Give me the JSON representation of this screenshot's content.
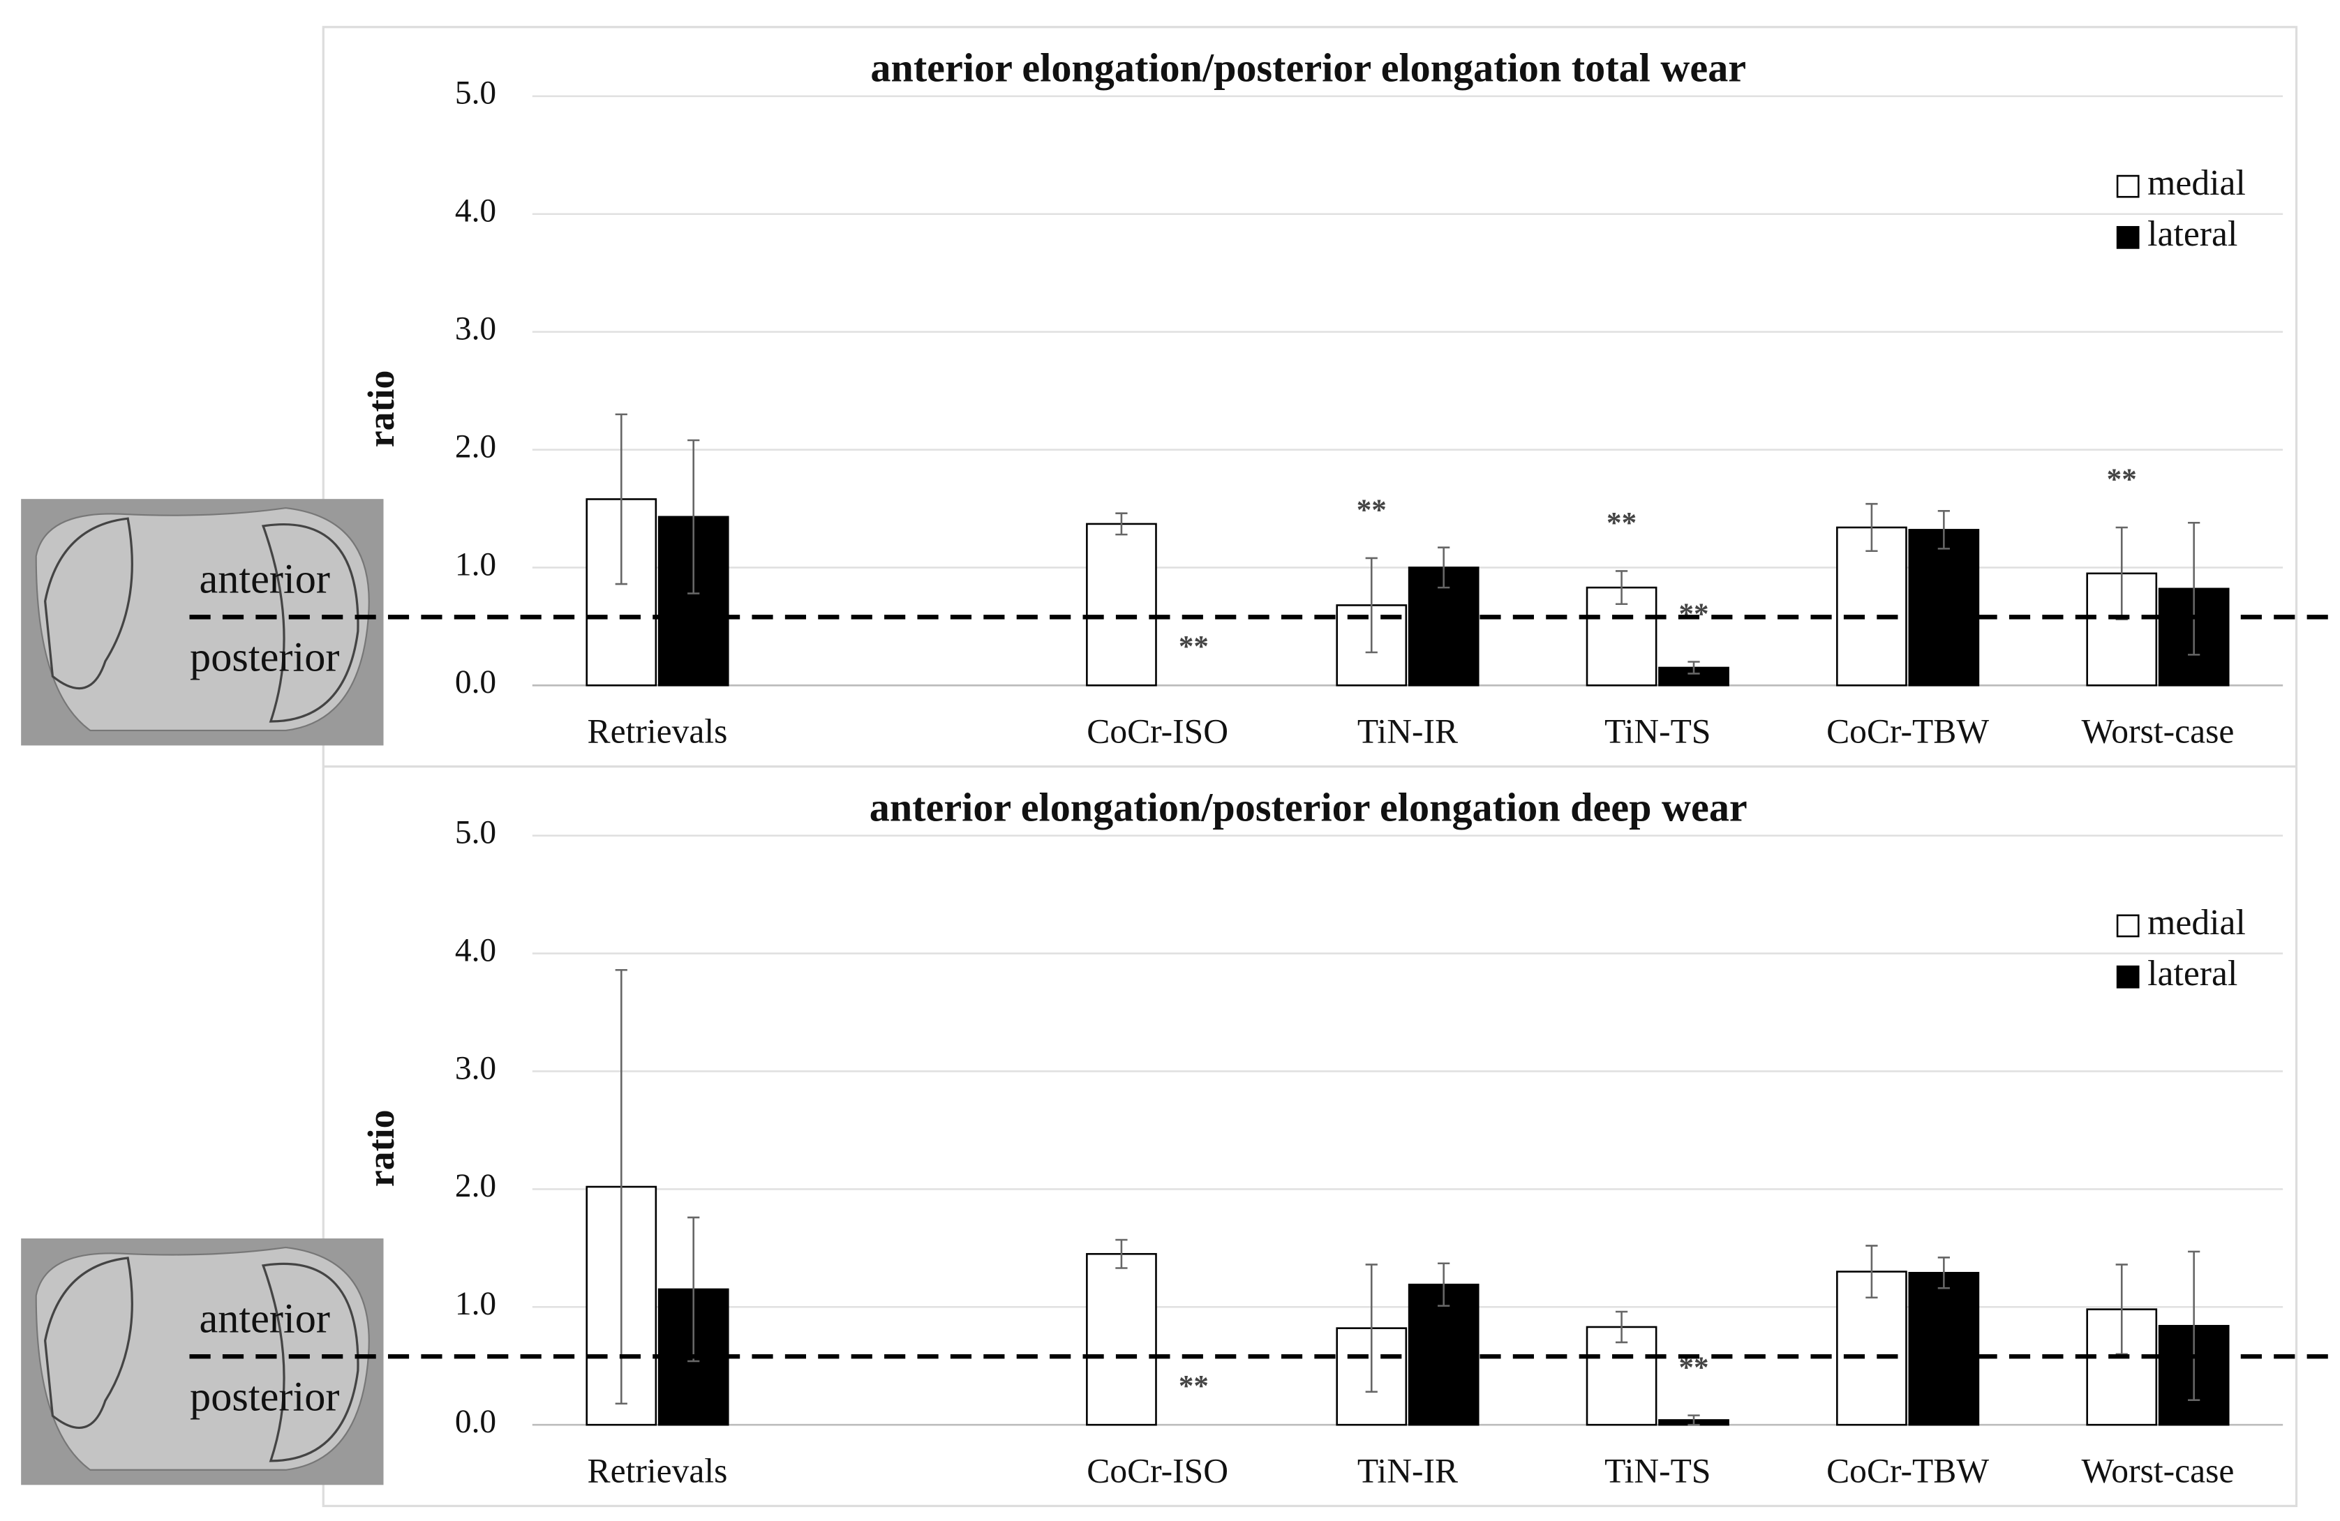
{
  "chart_data": [
    {
      "type": "bar",
      "title": "anterior elongation/posterior elongation total wear",
      "y_label": "ratio",
      "categories": [
        "Retrievals",
        null,
        "CoCr-ISO",
        "TiN-IR",
        "TiN-TS",
        "CoCr-TBW",
        "Worst-case"
      ],
      "series": [
        {
          "name": "medial",
          "color": "#ffffff",
          "values": [
            1.58,
            null,
            1.37,
            0.68,
            0.83,
            1.34,
            0.95
          ],
          "errors": [
            0.72,
            null,
            0.09,
            0.4,
            0.14,
            0.2,
            0.39
          ],
          "annotations": [
            null,
            null,
            null,
            "**",
            "**",
            null,
            "**"
          ]
        },
        {
          "name": "lateral",
          "color": "#000000",
          "values": [
            1.43,
            null,
            null,
            1.0,
            0.15,
            1.32,
            0.82
          ],
          "errors": [
            0.65,
            null,
            null,
            0.17,
            0.05,
            0.16,
            0.56
          ],
          "annotations": [
            null,
            null,
            "**",
            null,
            "**",
            null,
            null
          ]
        }
      ],
      "ylim": [
        0,
        5
      ],
      "yticks": [
        {
          "value": 0,
          "label": "0.0"
        },
        {
          "value": 1,
          "label": "1.0"
        },
        {
          "value": 2,
          "label": "2.0"
        },
        {
          "value": 3,
          "label": "3.0"
        },
        {
          "value": 4,
          "label": "4.0"
        },
        {
          "value": 5,
          "label": "5.0"
        }
      ],
      "grid": true,
      "legend": "upper right",
      "reference_line": 0.58,
      "inset_labels": [
        "anterior",
        "posterior"
      ]
    },
    {
      "type": "bar",
      "title": "anterior elongation/posterior elongation deep wear",
      "y_label": "ratio",
      "categories": [
        "Retrievals",
        null,
        "CoCr-ISO",
        "TiN-IR",
        "TiN-TS",
        "CoCr-TBW",
        "Worst-case"
      ],
      "series": [
        {
          "name": "medial",
          "color": "#ffffff",
          "values": [
            2.02,
            null,
            1.45,
            0.82,
            0.83,
            1.3,
            0.98
          ],
          "errors": [
            1.84,
            null,
            0.12,
            0.54,
            0.13,
            0.22,
            0.38
          ],
          "annotations": [
            null,
            null,
            null,
            null,
            null,
            null,
            null
          ]
        },
        {
          "name": "lateral",
          "color": "#000000",
          "values": [
            1.15,
            null,
            null,
            1.19,
            0.04,
            1.29,
            0.84
          ],
          "errors": [
            0.61,
            null,
            null,
            0.18,
            0.04,
            0.13,
            0.63
          ],
          "annotations": [
            null,
            null,
            "**",
            null,
            "**",
            null,
            null
          ]
        }
      ],
      "ylim": [
        0,
        5
      ],
      "yticks": [
        {
          "value": 0,
          "label": "0.0"
        },
        {
          "value": 1,
          "label": "1.0"
        },
        {
          "value": 2,
          "label": "2.0"
        },
        {
          "value": 3,
          "label": "3.0"
        },
        {
          "value": 4,
          "label": "4.0"
        },
        {
          "value": 5,
          "label": "5.0"
        }
      ],
      "grid": true,
      "legend": "upper right",
      "reference_line": 0.58,
      "inset_labels": [
        "anterior",
        "posterior"
      ]
    }
  ]
}
